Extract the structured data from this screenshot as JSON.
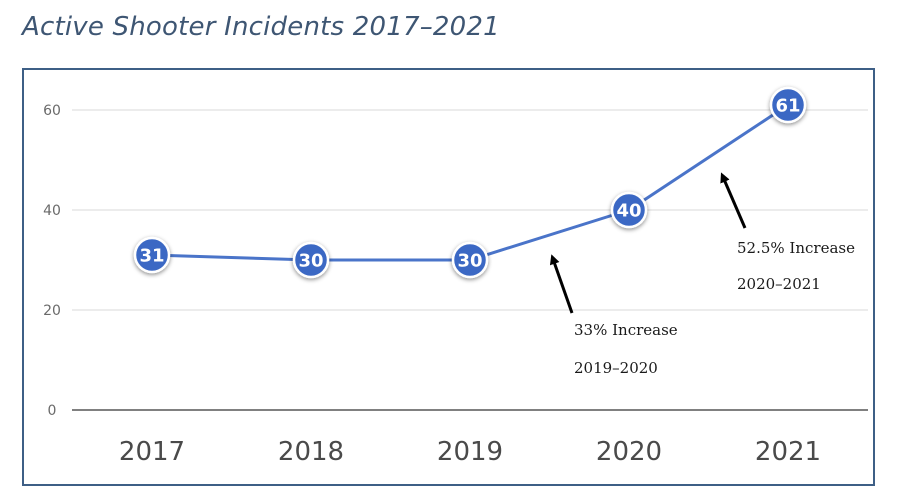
{
  "title": "Active Shooter Incidents 2017–2021",
  "chart_data": {
    "type": "line",
    "title": "Active Shooter Incidents 2017–2021",
    "xlabel": "",
    "ylabel": "",
    "categories": [
      "2017",
      "2018",
      "2019",
      "2020",
      "2021"
    ],
    "series": [
      {
        "values": [
          31,
          30,
          30,
          40,
          61
        ]
      }
    ],
    "data_labels": [
      "31",
      "30",
      "30",
      "40",
      "61"
    ],
    "ylim": [
      0,
      70
    ],
    "yticks": [
      0,
      20,
      40,
      60
    ],
    "grid": "horizontal",
    "line_color": "#4a74c9",
    "marker_color": "#3a67c4",
    "annotations": [
      {
        "line1": "33% Increase",
        "line2": "2019–2020",
        "between": [
          "2019",
          "2020"
        ]
      },
      {
        "line1": "52.5% Increase",
        "line2": "2020–2021",
        "between": [
          "2020",
          "2021"
        ]
      }
    ]
  }
}
